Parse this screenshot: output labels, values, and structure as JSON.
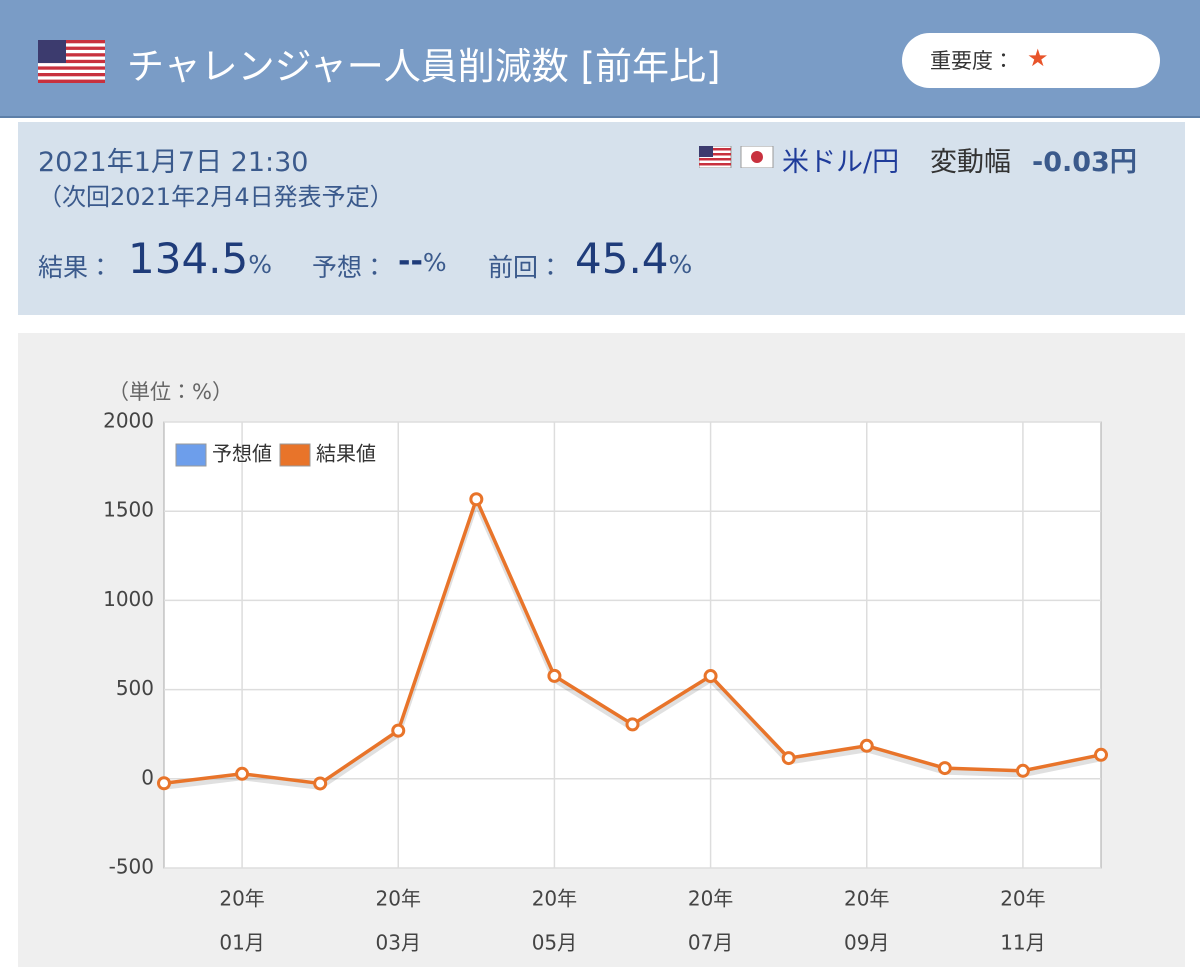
{
  "header": {
    "title": "チャレンジャー人員削減数 [前年比]",
    "importance_label": "重要度：",
    "importance": "★"
  },
  "info": {
    "datetime": "2021年1月7日 21:30",
    "next": "（次回2021年2月4日発表予定）",
    "pair": "米ドル/円",
    "change_label": "変動幅",
    "change": "-0.03円",
    "result_label": "結果：",
    "result": "134.5",
    "forecast_label": "予想：",
    "forecast": "--",
    "previous_label": "前回：",
    "previous": "45.4",
    "unit": "%"
  },
  "chart_data": {
    "type": "line",
    "y_axis_label": "（単位：%）",
    "categories": [
      null,
      [
        "20年",
        "01月"
      ],
      null,
      [
        "20年",
        "03月"
      ],
      null,
      [
        "20年",
        "05月"
      ],
      null,
      [
        "20年",
        "07月"
      ],
      null,
      [
        "20年",
        "09月"
      ],
      null,
      [
        "20年",
        "11月"
      ],
      null
    ],
    "series": [
      {
        "name": "予想値",
        "color": "#6d9eeb",
        "values": [
          null,
          null,
          null,
          null,
          null,
          null,
          null,
          null,
          null,
          null,
          null,
          null,
          null
        ]
      },
      {
        "name": "結果値",
        "color": "#e8742a",
        "values": [
          -25,
          28,
          -26,
          270,
          1567,
          577,
          305,
          576,
          116,
          185,
          60,
          45,
          134.5
        ]
      }
    ],
    "ylim": [
      -500,
      2000
    ],
    "yticks": [
      -500,
      0,
      500,
      1000,
      1500,
      2000
    ],
    "grid": true,
    "legend": "top-left"
  }
}
